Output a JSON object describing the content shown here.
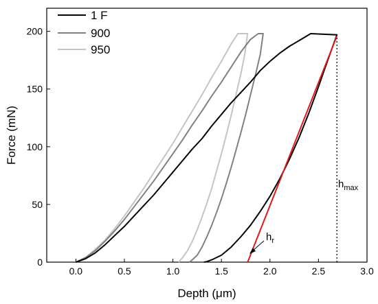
{
  "chart_data": {
    "type": "line",
    "xlabel": "Depth (μm)",
    "ylabel": "Force (mN)",
    "xlim": [
      -0.3,
      3.0
    ],
    "ylim": [
      0,
      220
    ],
    "x_ticks": [
      "0.0",
      "0.5",
      "1.0",
      "1.5",
      "2.0",
      "2.5",
      "3.0"
    ],
    "x_tick_values": [
      0,
      0.5,
      1.0,
      1.5,
      2.0,
      2.5,
      3.0
    ],
    "y_ticks": [
      "0",
      "50",
      "100",
      "150",
      "200"
    ],
    "y_tick_values": [
      0,
      50,
      100,
      150,
      200
    ],
    "legend_position": "top-left",
    "series": [
      {
        "name": "1 F",
        "color": "#000000",
        "x": [
          0.0,
          0.1,
          0.2,
          0.3,
          0.4,
          0.5,
          0.6,
          0.7,
          0.8,
          0.9,
          1.0,
          1.1,
          1.2,
          1.3,
          1.4,
          1.5,
          1.6,
          1.7,
          1.8,
          1.9,
          2.0,
          2.1,
          2.2,
          2.3,
          2.42,
          2.69,
          2.6,
          2.5,
          2.4,
          2.3,
          2.2,
          2.1,
          2.0,
          1.9,
          1.8,
          1.7,
          1.6,
          1.5,
          1.4,
          1.35,
          1.32
        ],
        "y": [
          0,
          3,
          8,
          15,
          23,
          31,
          40,
          49,
          58,
          68,
          78,
          88,
          98,
          107,
          118,
          128,
          138,
          147,
          156,
          166,
          174,
          181,
          187,
          192,
          198,
          197,
          176,
          152,
          129,
          108,
          89,
          72,
          57,
          44,
          32,
          22,
          13,
          6,
          2,
          0.5,
          0
        ]
      },
      {
        "name": "900",
        "color": "#808080",
        "x": [
          0.0,
          0.1,
          0.2,
          0.3,
          0.4,
          0.5,
          0.6,
          0.7,
          0.8,
          0.9,
          1.0,
          1.1,
          1.2,
          1.3,
          1.4,
          1.5,
          1.6,
          1.7,
          1.8,
          1.88,
          1.93,
          1.9,
          1.85,
          1.8,
          1.75,
          1.7,
          1.65,
          1.6,
          1.55,
          1.5,
          1.45,
          1.4,
          1.35,
          1.3,
          1.25,
          1.2,
          1.17
        ],
        "y": [
          0,
          4,
          10,
          18,
          27,
          37,
          48,
          59,
          70,
          82,
          94,
          106,
          119,
          131,
          144,
          156,
          169,
          182,
          193,
          198,
          198,
          180,
          162,
          145,
          128,
          112,
          97,
          82,
          68,
          55,
          43,
          32,
          22,
          13,
          6,
          2,
          0
        ]
      },
      {
        "name": "950",
        "color": "#c4c4c4",
        "x": [
          0.0,
          0.1,
          0.2,
          0.3,
          0.4,
          0.5,
          0.6,
          0.7,
          0.8,
          0.9,
          1.0,
          1.1,
          1.2,
          1.3,
          1.4,
          1.5,
          1.6,
          1.67,
          1.77,
          1.74,
          1.7,
          1.65,
          1.6,
          1.55,
          1.5,
          1.45,
          1.4,
          1.35,
          1.3,
          1.25,
          1.2,
          1.15,
          1.1,
          1.06
        ],
        "y": [
          0,
          4,
          11,
          19,
          29,
          40,
          52,
          64,
          77,
          90,
          103,
          117,
          131,
          145,
          160,
          174,
          189,
          198,
          198,
          180,
          163,
          145,
          127,
          110,
          94,
          79,
          64,
          51,
          39,
          28,
          18,
          10,
          4,
          0
        ]
      }
    ],
    "tangent_line": {
      "color": "#e0191b",
      "x": [
        1.77,
        2.69
      ],
      "y": [
        0,
        196
      ]
    },
    "hmax_line": {
      "x": 2.69,
      "y": [
        0,
        197
      ]
    },
    "annotations": {
      "hmax_main": "h",
      "hmax_sub": "max",
      "hr_main": "h",
      "hr_sub": "r"
    }
  }
}
